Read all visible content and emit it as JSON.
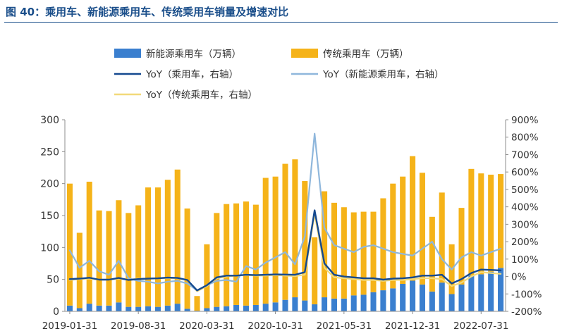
{
  "figure_title": "图 40：乘用车、新能源乘用车、传统乘用车销量及增速对比",
  "chart_data": {
    "type": "bar+line",
    "stacked": true,
    "legend_position": "top",
    "grid": false,
    "x_tick_labels": [
      "2019-01-31",
      "2019-08-31",
      "2020-03-31",
      "2020-10-31",
      "2021-05-31",
      "2021-12-31",
      "2022-07-31"
    ],
    "y_left": {
      "min": 0,
      "max": 300,
      "ticks": [
        "0",
        "50",
        "100",
        "150",
        "200",
        "250",
        "300"
      ]
    },
    "y_right": {
      "min": -200,
      "max": 900,
      "ticks": [
        "-200%",
        "-100%",
        "0%",
        "100%",
        "200%",
        "300%",
        "400%",
        "500%",
        "600%",
        "700%",
        "800%",
        "900%"
      ]
    },
    "months": [
      "2019-01",
      "2019-02",
      "2019-03",
      "2019-04",
      "2019-05",
      "2019-06",
      "2019-07",
      "2019-08",
      "2019-09",
      "2019-10",
      "2019-11",
      "2019-12",
      "2020-01",
      "2020-02",
      "2020-03",
      "2020-04",
      "2020-05",
      "2020-06",
      "2020-07",
      "2020-08",
      "2020-09",
      "2020-10",
      "2020-11",
      "2020-12",
      "2021-01",
      "2021-02",
      "2021-03",
      "2021-04",
      "2021-05",
      "2021-06",
      "2021-07",
      "2021-08",
      "2021-09",
      "2021-10",
      "2021-11",
      "2021-12",
      "2022-01",
      "2022-02",
      "2022-03",
      "2022-04",
      "2022-05",
      "2022-06",
      "2022-07",
      "2022-08",
      "2022-09"
    ],
    "series": [
      {
        "name": "新能源乘用车（万辆）",
        "kind": "bar",
        "axis": "left",
        "color": "#3a7fcf",
        "values": [
          9,
          5,
          12,
          9,
          9,
          14,
          7,
          7,
          8,
          7,
          9,
          12,
          4,
          1,
          5,
          7,
          8,
          10,
          9,
          10,
          12,
          14,
          18,
          22,
          17,
          11,
          22,
          20,
          20,
          25,
          26,
          30,
          33,
          36,
          43,
          48,
          42,
          31,
          45,
          27,
          42,
          56,
          58,
          62,
          68
        ]
      },
      {
        "name": "传统乘用车（万辆）",
        "kind": "bar",
        "axis": "left",
        "color": "#f5b319",
        "values": [
          191,
          118,
          191,
          149,
          148,
          160,
          147,
          159,
          186,
          187,
          197,
          210,
          157,
          23,
          100,
          147,
          160,
          159,
          163,
          157,
          197,
          197,
          213,
          216,
          187,
          105,
          166,
          150,
          143,
          130,
          130,
          126,
          144,
          164,
          168,
          195,
          175,
          117,
          141,
          78,
          120,
          167,
          158,
          152,
          147
        ]
      },
      {
        "name": "YoY（乘用车，右轴）",
        "kind": "line",
        "axis": "right",
        "color": "#14498f",
        "values": [
          -15,
          -12,
          -7,
          -18,
          -18,
          -8,
          -20,
          -15,
          -12,
          -10,
          -6,
          -8,
          -20,
          -80,
          -50,
          -5,
          5,
          5,
          10,
          8,
          10,
          12,
          11,
          10,
          25,
          380,
          75,
          10,
          0,
          -5,
          -10,
          -10,
          -18,
          -12,
          -10,
          -5,
          5,
          5,
          10,
          -40,
          -15,
          20,
          40,
          38,
          35
        ]
      },
      {
        "name": "YoY（新能源乘用车，右轴）",
        "kind": "line",
        "axis": "right",
        "color": "#8fb7dc",
        "values": [
          150,
          50,
          90,
          30,
          10,
          90,
          -10,
          -25,
          -30,
          -40,
          -30,
          -25,
          -40,
          -80,
          -50,
          -25,
          -20,
          -30,
          60,
          40,
          80,
          110,
          140,
          70,
          230,
          820,
          280,
          180,
          160,
          140,
          170,
          180,
          160,
          140,
          130,
          120,
          160,
          200,
          100,
          40,
          110,
          140,
          120,
          140,
          160
        ]
      },
      {
        "name": "YoY（传统乘用车，右轴）",
        "kind": "line",
        "axis": "right",
        "color": "#f2d97a",
        "values": [
          -20,
          -15,
          -12,
          -18,
          -18,
          -12,
          -18,
          -12,
          -12,
          -10,
          -10,
          -10,
          -20,
          -85,
          -55,
          -10,
          0,
          5,
          8,
          5,
          5,
          8,
          5,
          2,
          10,
          360,
          50,
          -5,
          -10,
          -15,
          -20,
          -20,
          -25,
          -20,
          -20,
          -15,
          -10,
          -10,
          -15,
          -55,
          -35,
          0,
          25,
          20,
          15
        ]
      }
    ]
  }
}
